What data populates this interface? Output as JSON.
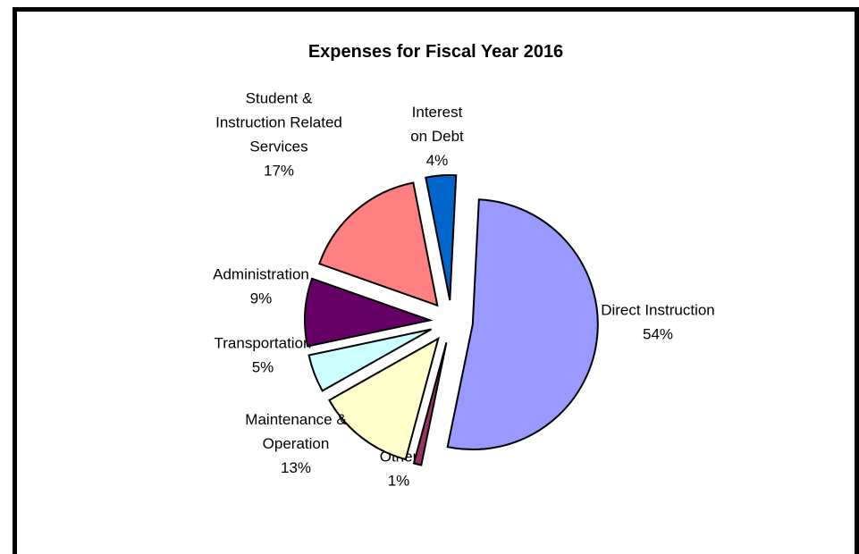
{
  "chart_data": {
    "type": "pie",
    "title": "Expenses for Fiscal Year 2016",
    "slices": [
      {
        "label_lines": [
          "Direct Instruction"
        ],
        "percent_label": "54%",
        "value": 54,
        "color": "#9999ff"
      },
      {
        "label_lines": [
          "Other"
        ],
        "percent_label": "1%",
        "value": 1,
        "color": "#993366"
      },
      {
        "label_lines": [
          "Maintenance &",
          "Operation"
        ],
        "percent_label": "13%",
        "value": 13,
        "color": "#ffffcc"
      },
      {
        "label_lines": [
          "Transportation"
        ],
        "percent_label": "5%",
        "value": 5,
        "color": "#ccffff"
      },
      {
        "label_lines": [
          "Administration"
        ],
        "percent_label": "9%",
        "value": 9,
        "color": "#660066"
      },
      {
        "label_lines": [
          "Student &",
          "Instruction Related",
          "Services"
        ],
        "percent_label": "17%",
        "value": 17,
        "color": "#ff8080"
      },
      {
        "label_lines": [
          "Interest",
          "on Debt"
        ],
        "percent_label": "4%",
        "value": 4,
        "color": "#0066cc"
      }
    ],
    "legend": "none",
    "exploded": true
  }
}
